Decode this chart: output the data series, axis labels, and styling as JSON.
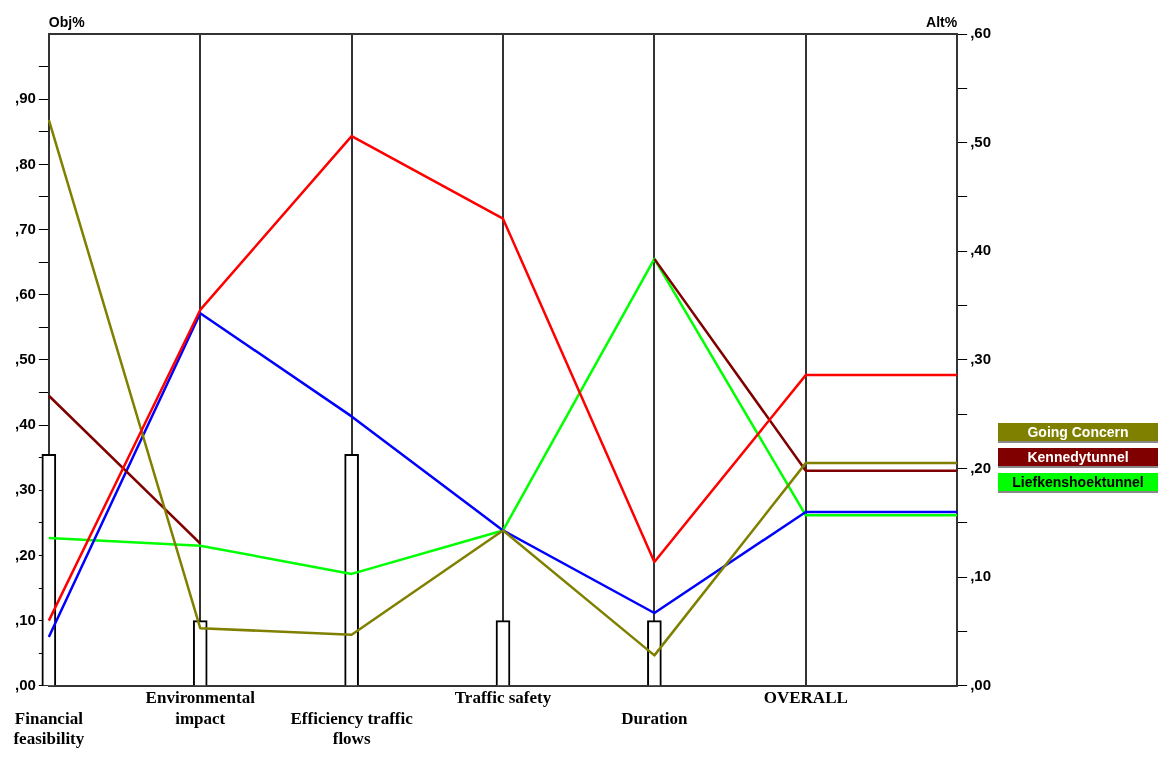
{
  "chart_data": {
    "type": "line",
    "categories": [
      "Financial feasibility",
      "Environmental impact",
      "Efficiency traffic flows",
      "Traffic safety",
      "Duration",
      "OVERALL",
      null
    ],
    "ylabel": "Obj%",
    "y2label": "Alt%",
    "ylim": [
      0,
      100
    ],
    "yticks": [
      {
        "value": 0,
        "label": ",00"
      },
      {
        "value": 5,
        "label": null
      },
      {
        "value": 10,
        "label": ",10"
      },
      {
        "value": 15,
        "label": null
      },
      {
        "value": 20,
        "label": ",20"
      },
      {
        "value": 25,
        "label": null
      },
      {
        "value": 30,
        "label": ",30"
      },
      {
        "value": 35,
        "label": null
      },
      {
        "value": 40,
        "label": ",40"
      },
      {
        "value": 45,
        "label": null
      },
      {
        "value": 50,
        "label": ",50"
      },
      {
        "value": 55,
        "label": null
      },
      {
        "value": 60,
        "label": ",60"
      },
      {
        "value": 65,
        "label": null
      },
      {
        "value": 70,
        "label": ",70"
      },
      {
        "value": 75,
        "label": null
      },
      {
        "value": 80,
        "label": ",80"
      },
      {
        "value": 85,
        "label": null
      },
      {
        "value": 90,
        "label": ",90"
      },
      {
        "value": 95,
        "label": null
      }
    ],
    "y2lim": [
      0,
      60
    ],
    "y2ticks": [
      {
        "value": 0,
        "label": ",00"
      },
      {
        "value": 5,
        "label": null
      },
      {
        "value": 10,
        "label": ",10"
      },
      {
        "value": 15,
        "label": null
      },
      {
        "value": 20,
        "label": ",20"
      },
      {
        "value": 25,
        "label": null
      },
      {
        "value": 30,
        "label": ",30"
      },
      {
        "value": 35,
        "label": null
      },
      {
        "value": 40,
        "label": ",40"
      },
      {
        "value": 45,
        "label": null
      },
      {
        "value": 50,
        "label": ",50"
      },
      {
        "value": 55,
        "label": null
      },
      {
        "value": 60,
        "label": ",60"
      }
    ],
    "grid": "x",
    "legend": "right",
    "marker": "none",
    "series": [
      {
        "type": "bar",
        "color": "#ffffff",
        "values": [
          35.5,
          10,
          35.5,
          10,
          10,
          null,
          null
        ]
      },
      {
        "color": "#ff0000",
        "axis": "y2",
        "values": [
          6,
          34.6,
          50.6,
          43,
          11.4,
          28.6,
          28.6
        ]
      },
      {
        "name": "Going Concern",
        "color": "#808000",
        "axis": "y2",
        "values": [
          52.1,
          5.3,
          4.7,
          14.3,
          2.8,
          20.5,
          20.5
        ]
      },
      {
        "name": "Kennedytunnel",
        "color": "#800000",
        "axis": "y2",
        "values": [
          26.7,
          13.1,
          null,
          null,
          39.3,
          19.8,
          19.8
        ]
      },
      {
        "color": "#0000ff",
        "axis": "y2",
        "values": [
          4.5,
          34.3,
          24.8,
          14.3,
          6.7,
          16,
          16
        ]
      },
      {
        "name": "Liefkenshoektunnel",
        "color": "#00ff00",
        "axis": "y2",
        "values": [
          13.6,
          12.9,
          10.3,
          14.3,
          39.3,
          15.7,
          15.7
        ]
      }
    ]
  }
}
